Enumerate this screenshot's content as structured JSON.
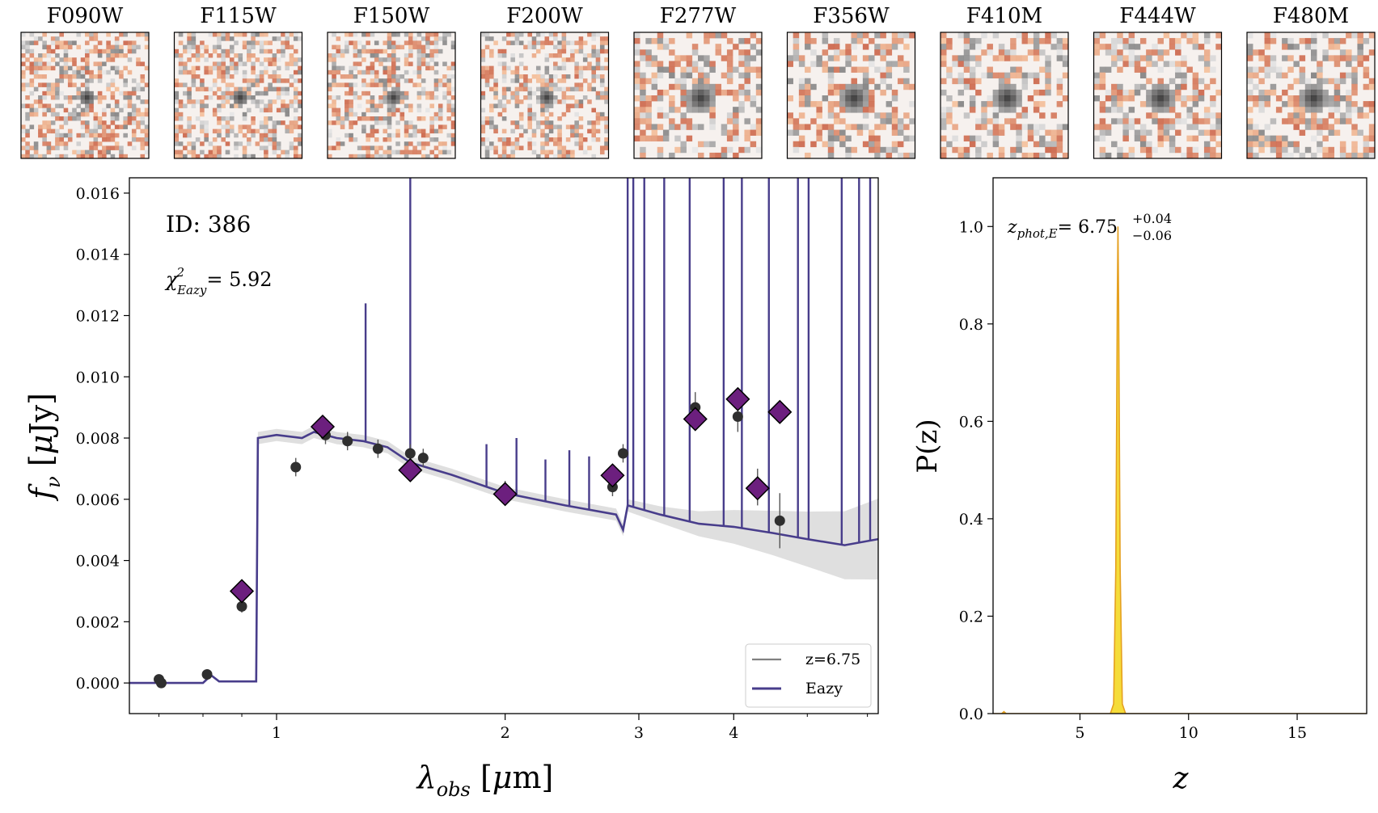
{
  "stamps": {
    "labels": [
      "F090W",
      "F115W",
      "F150W",
      "F200W",
      "F277W",
      "F356W",
      "F410M",
      "F444W",
      "F480M"
    ]
  },
  "chart_data": [
    {
      "type": "scatter",
      "title": "",
      "xlabel": "λobs [μm]",
      "ylabel": "fν [μJy]",
      "xscale": "log",
      "xlim": [
        0.64,
        6.2
      ],
      "ylim": [
        -0.001,
        0.0165
      ],
      "xticks": [
        1,
        2,
        3,
        4
      ],
      "xtick_labels": [
        "1",
        "2",
        "3",
        "4"
      ],
      "yticks": [
        0.0,
        0.002,
        0.004,
        0.006,
        0.008,
        0.01,
        0.012,
        0.014,
        0.016
      ],
      "ytick_labels": [
        "0.000",
        "0.002",
        "0.004",
        "0.006",
        "0.008",
        "0.010",
        "0.012",
        "0.014",
        "0.016"
      ],
      "annotations": {
        "id_label": "ID: 386",
        "chi_symbol": "χ",
        "chi_sup": "2",
        "chi_sub": "Eazy",
        "chi_value": "= 5.92"
      },
      "legend": {
        "position": "lower-right",
        "entries": [
          {
            "label": "z=6.75",
            "color": "#808080"
          },
          {
            "label": "Eazy",
            "color": "#483d8b"
          }
        ]
      },
      "colors": {
        "model": "#483d8b",
        "observed": "#2f2f2f",
        "synthetic": "#6c1f7e",
        "band": "#d4d4d4"
      },
      "series": [
        {
          "name": "Observed photometry",
          "points": [
            {
              "x": 0.7,
              "y": 0.00012,
              "err": 0.0001
            },
            {
              "x": 0.705,
              "y": 0.0,
              "err": 0.0001
            },
            {
              "x": 0.81,
              "y": 0.00028,
              "err": 0.0001
            },
            {
              "x": 0.9,
              "y": 0.0025,
              "err": 0.0002
            },
            {
              "x": 1.06,
              "y": 0.00705,
              "err": 0.0003
            },
            {
              "x": 1.16,
              "y": 0.0081,
              "err": 0.0003
            },
            {
              "x": 1.24,
              "y": 0.0079,
              "err": 0.0003
            },
            {
              "x": 1.36,
              "y": 0.00765,
              "err": 0.0003
            },
            {
              "x": 1.5,
              "y": 0.0075,
              "err": 0.0003
            },
            {
              "x": 1.56,
              "y": 0.00735,
              "err": 0.0003
            },
            {
              "x": 2.0,
              "y": 0.0063,
              "err": 0.0003
            },
            {
              "x": 2.77,
              "y": 0.0064,
              "err": 0.0003
            },
            {
              "x": 2.86,
              "y": 0.0075,
              "err": 0.0003
            },
            {
              "x": 3.56,
              "y": 0.009,
              "err": 0.0005
            },
            {
              "x": 4.05,
              "y": 0.0087,
              "err": 0.0005
            },
            {
              "x": 4.3,
              "y": 0.0064,
              "err": 0.0006
            },
            {
              "x": 4.6,
              "y": 0.0053,
              "err": 0.0009
            }
          ]
        },
        {
          "name": "Eazy model photometry",
          "points": [
            {
              "x": 0.9,
              "y": 0.003
            },
            {
              "x": 1.15,
              "y": 0.00837
            },
            {
              "x": 1.5,
              "y": 0.00695
            },
            {
              "x": 2.0,
              "y": 0.00617
            },
            {
              "x": 2.77,
              "y": 0.00678
            },
            {
              "x": 3.56,
              "y": 0.00862
            },
            {
              "x": 4.05,
              "y": 0.00927
            },
            {
              "x": 4.3,
              "y": 0.00636
            },
            {
              "x": 4.6,
              "y": 0.00885
            }
          ]
        },
        {
          "name": "Eazy continuum",
          "points": [
            {
              "x": 0.64,
              "y": 0.0
            },
            {
              "x": 0.8,
              "y": 0.0
            },
            {
              "x": 0.82,
              "y": 0.00025
            },
            {
              "x": 0.84,
              "y": 5e-05
            },
            {
              "x": 0.94,
              "y": 5e-05
            },
            {
              "x": 0.945,
              "y": 0.008
            },
            {
              "x": 1.0,
              "y": 0.0081
            },
            {
              "x": 1.08,
              "y": 0.008
            },
            {
              "x": 1.12,
              "y": 0.0082
            },
            {
              "x": 1.2,
              "y": 0.008
            },
            {
              "x": 1.3,
              "y": 0.0079
            },
            {
              "x": 1.4,
              "y": 0.0077
            },
            {
              "x": 1.5,
              "y": 0.0072
            },
            {
              "x": 1.7,
              "y": 0.0068
            },
            {
              "x": 2.0,
              "y": 0.0062
            },
            {
              "x": 2.4,
              "y": 0.0058
            },
            {
              "x": 2.8,
              "y": 0.0055
            },
            {
              "x": 2.86,
              "y": 0.005
            },
            {
              "x": 2.9,
              "y": 0.0058
            },
            {
              "x": 3.2,
              "y": 0.0055
            },
            {
              "x": 3.6,
              "y": 0.0052
            },
            {
              "x": 4.0,
              "y": 0.0051
            },
            {
              "x": 4.5,
              "y": 0.0049
            },
            {
              "x": 5.0,
              "y": 0.0047
            },
            {
              "x": 5.6,
              "y": 0.0045
            },
            {
              "x": 6.2,
              "y": 0.0047
            }
          ]
        },
        {
          "name": "Eazy emission lines",
          "points": [
            {
              "x": 1.5,
              "y": 0.0165
            },
            {
              "x": 1.31,
              "y": 0.0124
            },
            {
              "x": 1.89,
              "y": 0.0078
            },
            {
              "x": 2.07,
              "y": 0.008
            },
            {
              "x": 2.26,
              "y": 0.0073
            },
            {
              "x": 2.43,
              "y": 0.0076
            },
            {
              "x": 2.58,
              "y": 0.0074
            },
            {
              "x": 2.9,
              "y": 0.0165
            },
            {
              "x": 2.95,
              "y": 0.0165
            },
            {
              "x": 3.05,
              "y": 0.0165
            },
            {
              "x": 3.24,
              "y": 0.0165
            },
            {
              "x": 3.5,
              "y": 0.0165
            },
            {
              "x": 3.88,
              "y": 0.0165
            },
            {
              "x": 4.1,
              "y": 0.0165
            },
            {
              "x": 4.45,
              "y": 0.0165
            },
            {
              "x": 4.86,
              "y": 0.0165
            },
            {
              "x": 5.02,
              "y": 0.0165
            },
            {
              "x": 5.55,
              "y": 0.0165
            },
            {
              "x": 5.85,
              "y": 0.0165
            },
            {
              "x": 6.05,
              "y": 0.0165
            }
          ]
        }
      ]
    },
    {
      "type": "area",
      "title": "",
      "xlabel": "z",
      "ylabel": "P(z)",
      "xlim": [
        1.0,
        18.2
      ],
      "ylim": [
        0.0,
        1.1
      ],
      "xticks": [
        5,
        10,
        15
      ],
      "xtick_labels": [
        "5",
        "10",
        "15"
      ],
      "yticks": [
        0.0,
        0.2,
        0.4,
        0.6,
        0.8,
        1.0
      ],
      "ytick_labels": [
        "0.0",
        "0.2",
        "0.4",
        "0.6",
        "0.8",
        "1.0"
      ],
      "annotations": {
        "zphot_symbol": "z",
        "zphot_sub": "phot,E",
        "zphot_value": "= 6.75",
        "err_plus": "+0.04",
        "err_minus": "−0.06"
      },
      "colors": {
        "fill": "#f5dc3a",
        "edge": "#e5a020"
      },
      "series": [
        {
          "name": "P(z)",
          "x": [
            1.0,
            1.4,
            1.5,
            1.6,
            6.4,
            6.55,
            6.65,
            6.72,
            6.75,
            6.78,
            6.85,
            6.95,
            7.1,
            18.2
          ],
          "values": [
            0.0,
            0.0,
            0.004,
            0.0,
            0.0,
            0.02,
            0.3,
            0.85,
            1.0,
            0.85,
            0.3,
            0.02,
            0.0,
            0.0
          ]
        }
      ]
    }
  ]
}
